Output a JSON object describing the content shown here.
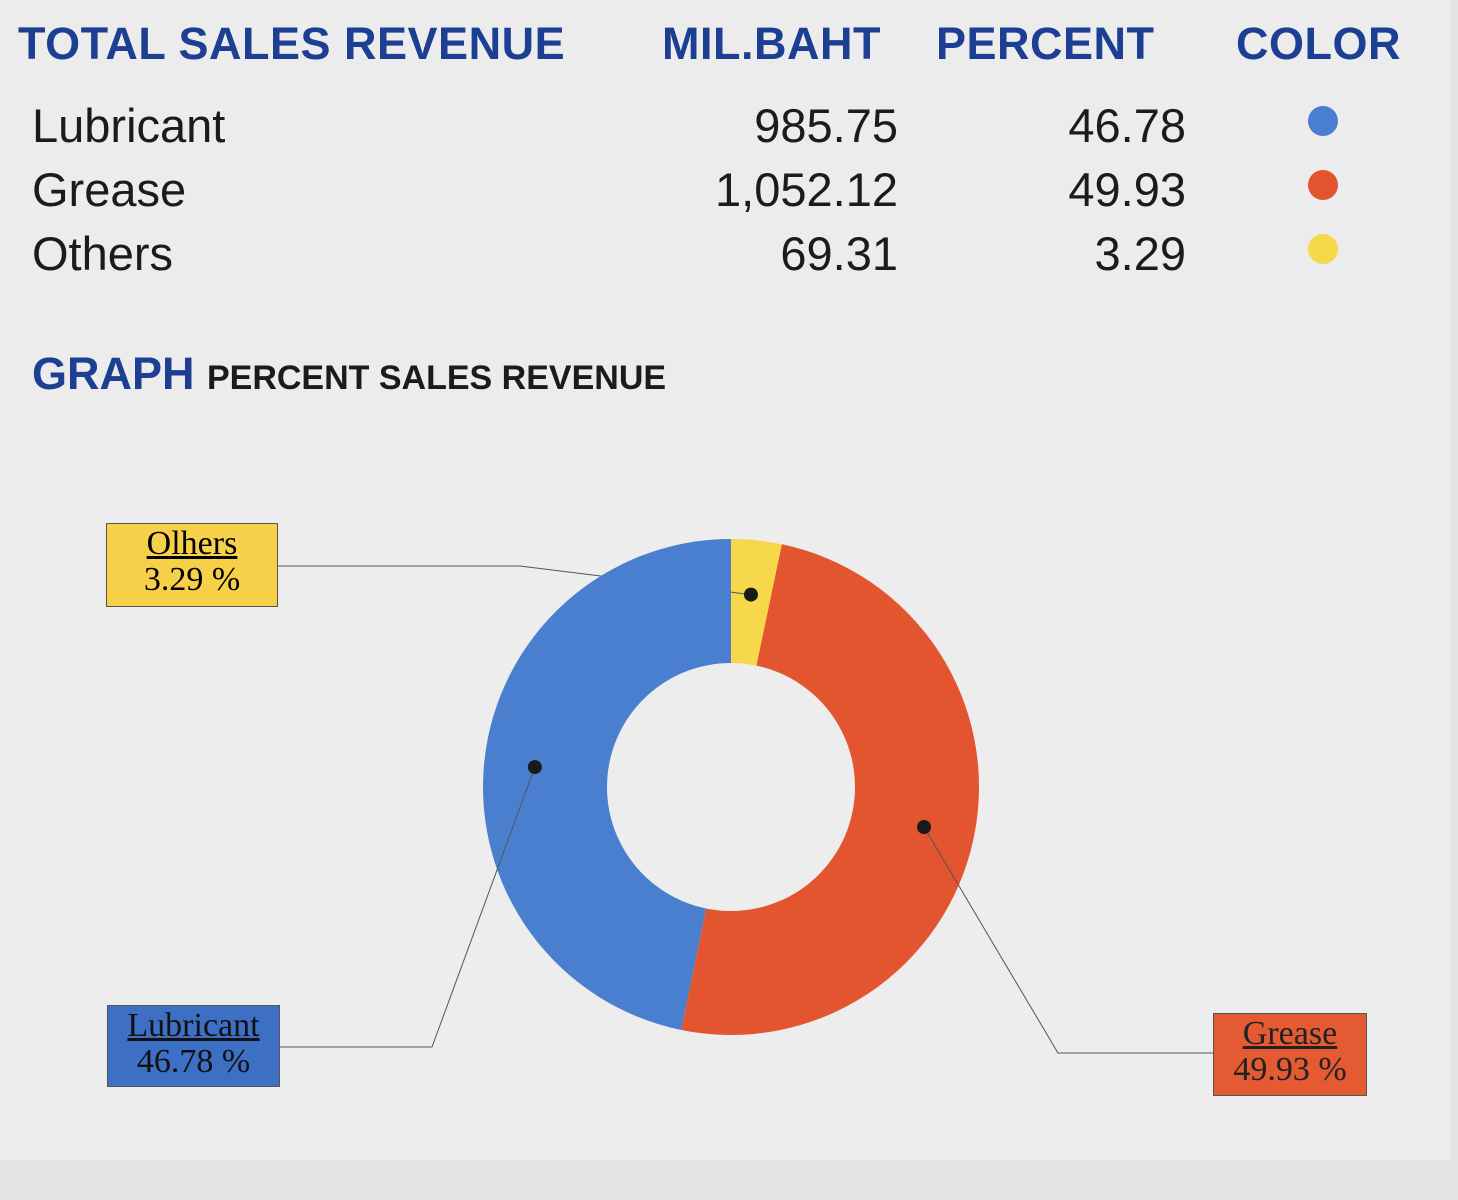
{
  "header": {
    "title": "TOTAL SALES REVENUE",
    "col_value": "MIL.BAHT",
    "col_percent": "PERCENT",
    "col_color": "COLOR"
  },
  "rows": [
    {
      "label": "Lubricant",
      "value": "985.75",
      "percent": "46.78",
      "color": "#4a7fd0"
    },
    {
      "label": "Grease",
      "value": "1,052.12",
      "percent": "49.93",
      "color": "#e2552e"
    },
    {
      "label": "Others",
      "value": "69.31",
      "percent": "3.29",
      "color": "#f6d84a"
    }
  ],
  "graph": {
    "title_big": "GRAPH",
    "title_small": "PERCENT SALES REVENUE"
  },
  "callouts": {
    "others": {
      "name": "Olhers",
      "value": "3.29 %"
    },
    "lubricant": {
      "name": "Lubricant",
      "value": "46.78 %"
    },
    "grease": {
      "name": "Grease",
      "value": "49.93 %"
    }
  },
  "chart_data": {
    "type": "pie",
    "style": "donut",
    "categories": [
      "Others",
      "Grease",
      "Lubricant"
    ],
    "values": [
      3.29,
      49.93,
      46.78
    ],
    "colors": [
      "#f6d84a",
      "#e2552e",
      "#4a7fd0"
    ],
    "start": "12 o'clock",
    "direction": "clockwise"
  }
}
